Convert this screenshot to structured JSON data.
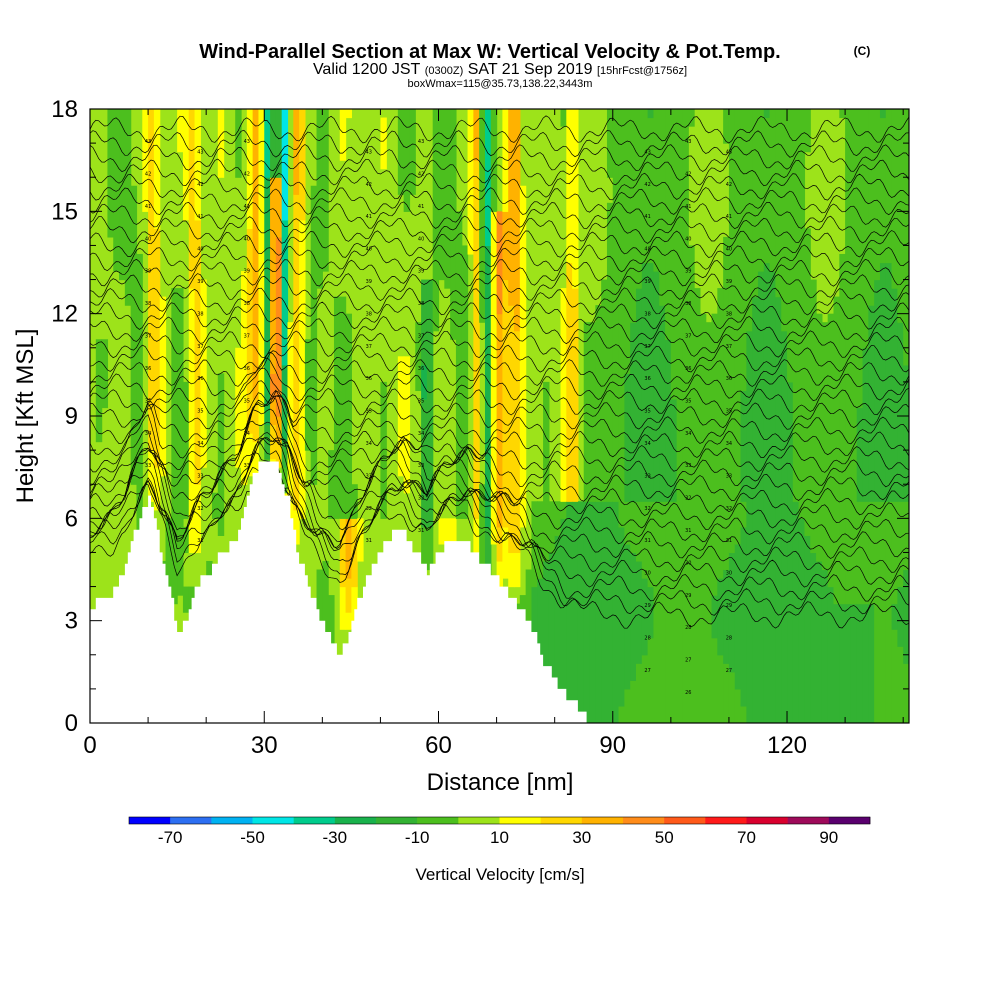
{
  "chart_data": {
    "type": "heatmap",
    "title": "Wind-Parallel Section at Max W: Vertical Velocity & Pot.Temp.",
    "title_mark": "(C)",
    "subtitle_parts": [
      "Valid 1200 JST",
      "(0300Z)",
      "SAT 21 Sep 2019",
      "[15hrFcst@1756z]"
    ],
    "subtitle2": "boxWmax=115@35.73,138.22,3443m",
    "xlabel": "Distance [nm]",
    "ylabel": "Height [Kft MSL]",
    "xlim": [
      0,
      141
    ],
    "ylim": [
      0,
      18
    ],
    "xticks": [
      0,
      30,
      60,
      90,
      120
    ],
    "yticks": [
      0,
      3,
      6,
      9,
      12,
      15,
      18
    ],
    "xtick_labels": [
      "0",
      "30",
      "60",
      "90",
      "120"
    ],
    "ytick_labels": [
      "0",
      "3",
      "6",
      "9",
      "12",
      "15",
      "18"
    ],
    "grid": false,
    "terrain_height_kft": [
      [
        0,
        3.3
      ],
      [
        1,
        3.5
      ],
      [
        2,
        3.6
      ],
      [
        4,
        3.9
      ],
      [
        6,
        4.6
      ],
      [
        7,
        5.3
      ],
      [
        8,
        5.8
      ],
      [
        9,
        6.2
      ],
      [
        10,
        6.5
      ],
      [
        11,
        6.0
      ],
      [
        12,
        5.1
      ],
      [
        13,
        4.4
      ],
      [
        14,
        3.5
      ],
      [
        15,
        2.6
      ],
      [
        16,
        2.9
      ],
      [
        17,
        3.4
      ],
      [
        18,
        3.9
      ],
      [
        19,
        4.2
      ],
      [
        20,
        4.3
      ],
      [
        21,
        4.5
      ],
      [
        22,
        4.9
      ],
      [
        23,
        5.1
      ],
      [
        24,
        5.2
      ],
      [
        25,
        5.4
      ],
      [
        26,
        5.9
      ],
      [
        27,
        6.6
      ],
      [
        28,
        7.2
      ],
      [
        29,
        7.5
      ],
      [
        30,
        7.5
      ],
      [
        31,
        7.5
      ],
      [
        32,
        7.5
      ],
      [
        33,
        7.0
      ],
      [
        34,
        6.5
      ],
      [
        35,
        5.5
      ],
      [
        36,
        4.8
      ],
      [
        37,
        4.2
      ],
      [
        38,
        3.8
      ],
      [
        39,
        3.3
      ],
      [
        40,
        3.0
      ],
      [
        41,
        2.6
      ],
      [
        42,
        2.2
      ],
      [
        43,
        2.0
      ],
      [
        44,
        2.4
      ],
      [
        45,
        3.0
      ],
      [
        46,
        3.6
      ],
      [
        47,
        4.0
      ],
      [
        48,
        4.4
      ],
      [
        49,
        4.8
      ],
      [
        50,
        5.1
      ],
      [
        51,
        5.3
      ],
      [
        52,
        5.5
      ],
      [
        53,
        5.5
      ],
      [
        54,
        5.5
      ],
      [
        55,
        5.2
      ],
      [
        56,
        5.0
      ],
      [
        57,
        4.8
      ],
      [
        58,
        4.4
      ],
      [
        59,
        4.8
      ],
      [
        60,
        5.0
      ],
      [
        61,
        5.2
      ],
      [
        62,
        5.3
      ],
      [
        63,
        5.3
      ],
      [
        64,
        5.3
      ],
      [
        65,
        5.3
      ],
      [
        66,
        5.0
      ],
      [
        67,
        4.8
      ],
      [
        68,
        4.6
      ],
      [
        69,
        4.4
      ],
      [
        70,
        4.2
      ],
      [
        71,
        4.0
      ],
      [
        72,
        3.8
      ],
      [
        73,
        3.5
      ],
      [
        74,
        3.3
      ],
      [
        75,
        3.1
      ],
      [
        76,
        2.8
      ],
      [
        77,
        2.3
      ],
      [
        78,
        1.8
      ],
      [
        79,
        1.5
      ],
      [
        80,
        1.3
      ],
      [
        81,
        1.0
      ],
      [
        82,
        0.8
      ],
      [
        83,
        0.6
      ],
      [
        84,
        0.4
      ],
      [
        85,
        0.2
      ],
      [
        86,
        0.05
      ],
      [
        88,
        0.0
      ],
      [
        141,
        0.0
      ]
    ],
    "updraft_columns": [
      {
        "x": 32.0,
        "w": 0.9,
        "peak_cm_s": 70,
        "top_kft": 16.0
      },
      {
        "x": 30.7,
        "w": 0.8,
        "peak_cm_s": -40,
        "top_kft": 18.0
      },
      {
        "x": 33.5,
        "w": 0.8,
        "peak_cm_s": -45,
        "top_kft": 18.0
      },
      {
        "x": 28.5,
        "w": 1.5,
        "peak_cm_s": 28,
        "top_kft": 18.0
      },
      {
        "x": 35.5,
        "w": 1.5,
        "peak_cm_s": 30,
        "top_kft": 18.0
      },
      {
        "x": 68.3,
        "w": 0.8,
        "peak_cm_s": -35,
        "top_kft": 18.0
      },
      {
        "x": 70.5,
        "w": 1.2,
        "peak_cm_s": 40,
        "top_kft": 15.0
      },
      {
        "x": 66.5,
        "w": 1.0,
        "peak_cm_s": 30,
        "top_kft": 18.0
      },
      {
        "x": 58.0,
        "w": 0.9,
        "peak_cm_s": -25,
        "top_kft": 13.0
      },
      {
        "x": 73.0,
        "w": 1.3,
        "peak_cm_s": 30,
        "top_kft": 18.0
      },
      {
        "x": 11.0,
        "w": 1.5,
        "peak_cm_s": 25,
        "top_kft": 18.0
      },
      {
        "x": 18.0,
        "w": 1.2,
        "peak_cm_s": 20,
        "top_kft": 18.0
      },
      {
        "x": 83.0,
        "w": 1.2,
        "peak_cm_s": 20,
        "top_kft": 18.0
      },
      {
        "x": 44.5,
        "w": 1.8,
        "peak_cm_s": 40,
        "top_kft": 6.0
      },
      {
        "x": 62.0,
        "w": 1.8,
        "peak_cm_s": 30,
        "top_kft": 6.0
      }
    ],
    "theta_contour_labels_c": [
      "43",
      "42",
      "41",
      "40",
      "39",
      "38",
      "37",
      "36",
      "35",
      "34",
      "33",
      "32",
      "31",
      "30",
      "29",
      "28",
      "27",
      "26"
    ]
  },
  "colorbar": {
    "label": "Vertical Velocity [cm/s]",
    "tick_labels": [
      "-70",
      "-50",
      "-30",
      "-10",
      "10",
      "30",
      "50",
      "70",
      "90"
    ],
    "levels": [
      -80,
      -70,
      -60,
      -50,
      -40,
      -30,
      -20,
      -10,
      0,
      10,
      20,
      30,
      40,
      50,
      60,
      70,
      80,
      90,
      100
    ],
    "colors": [
      "#0000ff",
      "#2d6ff2",
      "#00b2f2",
      "#00e6e6",
      "#00cc8c",
      "#19b24c",
      "#33b233",
      "#4cbf1e",
      "#9de31a",
      "#ffff00",
      "#ffd700",
      "#ffb200",
      "#ff8c1a",
      "#ff5a1a",
      "#ff1a1a",
      "#d9002e",
      "#9e0a5a",
      "#5a006e"
    ]
  }
}
